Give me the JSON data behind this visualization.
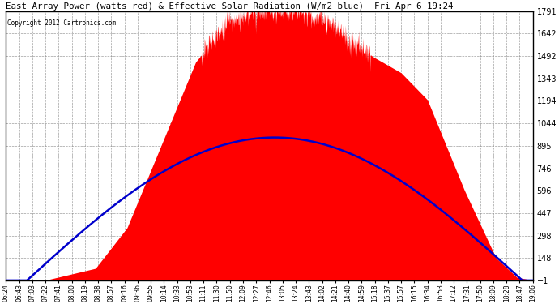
{
  "title": "East Array Power (watts red) & Effective Solar Radiation (W/m2 blue)  Fri Apr 6 19:24",
  "copyright": "Copyright 2012 Cartronics.com",
  "bg_color": "#ffffff",
  "plot_bg_color": "#ffffff",
  "grid_color": "#888888",
  "red_color": "#ff0000",
  "blue_color": "#0000cc",
  "ylim": [
    -1.0,
    1790.9
  ],
  "yticks": [
    1790.9,
    1641.6,
    1492.2,
    1342.9,
    1193.6,
    1044.3,
    894.9,
    745.6,
    596.3,
    446.9,
    297.6,
    148.3,
    -1.0
  ],
  "xtick_labels": [
    "06:24",
    "06:43",
    "07:03",
    "07:22",
    "07:41",
    "08:00",
    "08:19",
    "08:38",
    "08:57",
    "09:16",
    "09:36",
    "09:55",
    "10:14",
    "10:33",
    "10:53",
    "11:11",
    "11:30",
    "11:50",
    "12:09",
    "12:27",
    "12:46",
    "13:05",
    "13:24",
    "13:43",
    "14:02",
    "14:21",
    "14:40",
    "14:59",
    "15:18",
    "15:37",
    "15:57",
    "16:15",
    "16:34",
    "16:53",
    "17:12",
    "17:31",
    "17:50",
    "18:09",
    "18:28",
    "18:47",
    "19:06"
  ],
  "power_keypoints_t": [
    0.0,
    0.08,
    0.17,
    0.23,
    0.295,
    0.36,
    0.42,
    0.48,
    0.52,
    0.56,
    0.6,
    0.65,
    0.7,
    0.75,
    0.8,
    0.87,
    0.93,
    0.97,
    1.0
  ],
  "power_keypoints_v": [
    0.0,
    5.0,
    80.0,
    350.0,
    900.0,
    1450.0,
    1720.0,
    1790.0,
    1790.0,
    1790.0,
    1750.0,
    1600.0,
    1480.0,
    1380.0,
    1200.0,
    600.0,
    150.0,
    20.0,
    0.0
  ],
  "radiation_peak": 950.0,
  "radiation_peak_t": 0.55,
  "radiation_rise_t": 0.04,
  "radiation_fall_t": 0.98
}
